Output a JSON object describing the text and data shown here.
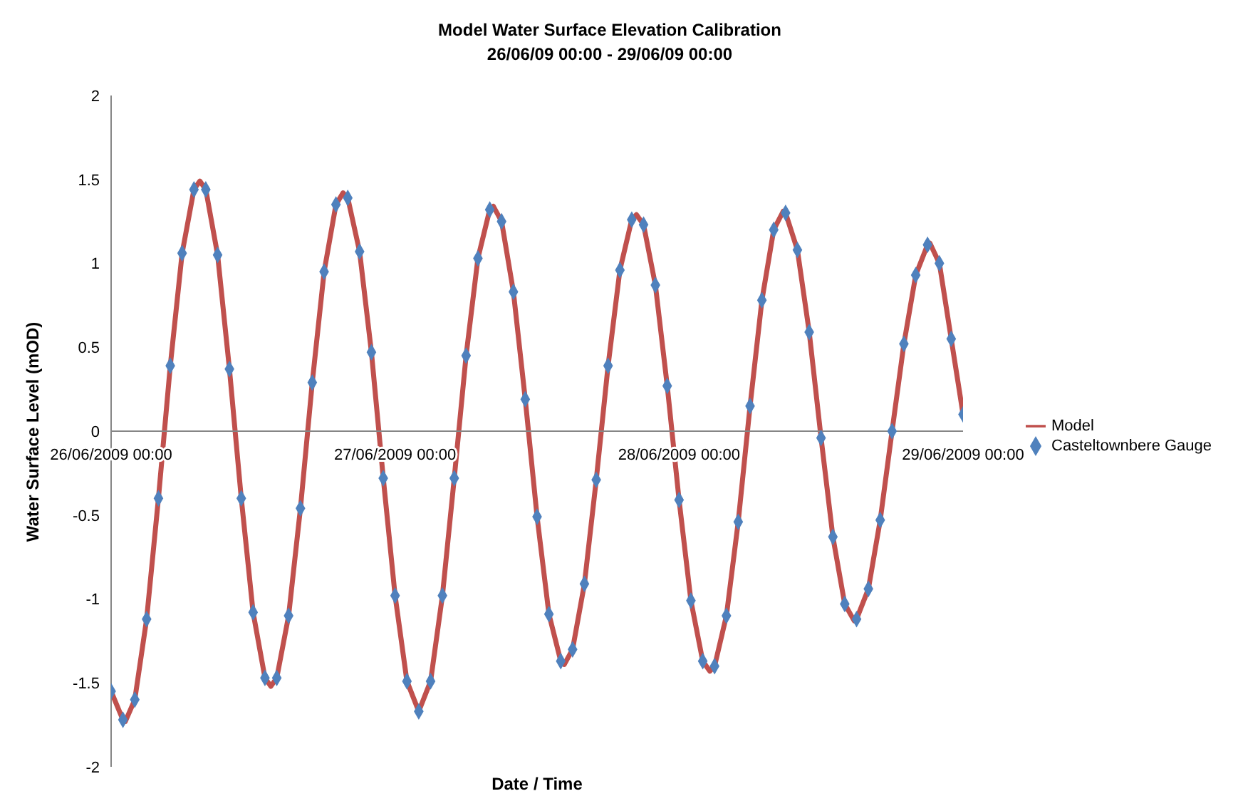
{
  "chart_data": {
    "type": "line",
    "title": "Model Water Surface Elevation Calibration",
    "subtitle": "26/06/09 00:00 - 29/06/09 00:00",
    "xlabel": "Date / Time",
    "ylabel": "Water Surface Level (mOD)",
    "x": [
      "2009-06-26T00:00",
      "2009-06-26T01:00",
      "2009-06-26T01:12",
      "2009-06-26T02:00",
      "2009-06-26T03:00",
      "2009-06-26T04:00",
      "2009-06-26T05:00",
      "2009-06-26T06:00",
      "2009-06-26T07:00",
      "2009-06-26T07:30",
      "2009-06-26T08:00",
      "2009-06-26T09:00",
      "2009-06-26T10:00",
      "2009-06-26T11:00",
      "2009-06-26T12:00",
      "2009-06-26T13:00",
      "2009-06-26T13:30",
      "2009-06-26T14:00",
      "2009-06-26T15:00",
      "2009-06-26T16:00",
      "2009-06-26T17:00",
      "2009-06-26T18:00",
      "2009-06-26T19:00",
      "2009-06-26T19:36",
      "2009-06-26T20:00",
      "2009-06-26T21:00",
      "2009-06-26T22:00",
      "2009-06-26T23:00",
      "2009-06-27T00:00",
      "2009-06-27T01:00",
      "2009-06-27T02:00",
      "2009-06-27T03:00",
      "2009-06-27T04:00",
      "2009-06-27T05:00",
      "2009-06-27T06:00",
      "2009-06-27T07:00",
      "2009-06-27T08:00",
      "2009-06-27T08:18",
      "2009-06-27T09:00",
      "2009-06-27T10:00",
      "2009-06-27T11:00",
      "2009-06-27T12:00",
      "2009-06-27T13:00",
      "2009-06-27T14:00",
      "2009-06-27T14:18",
      "2009-06-27T15:00",
      "2009-06-27T16:00",
      "2009-06-27T17:00",
      "2009-06-27T18:00",
      "2009-06-27T19:00",
      "2009-06-27T20:00",
      "2009-06-27T20:24",
      "2009-06-27T21:00",
      "2009-06-27T22:00",
      "2009-06-27T23:00",
      "2009-06-28T00:00",
      "2009-06-28T01:00",
      "2009-06-28T02:00",
      "2009-06-28T02:36",
      "2009-06-28T03:00",
      "2009-06-28T04:00",
      "2009-06-28T05:00",
      "2009-06-28T06:00",
      "2009-06-28T07:00",
      "2009-06-28T08:00",
      "2009-06-28T08:48",
      "2009-06-28T09:00",
      "2009-06-28T10:00",
      "2009-06-28T11:00",
      "2009-06-28T12:00",
      "2009-06-28T13:00",
      "2009-06-28T14:00",
      "2009-06-28T14:48",
      "2009-06-28T15:00",
      "2009-06-28T16:00",
      "2009-06-28T17:00",
      "2009-06-28T18:00",
      "2009-06-28T19:00",
      "2009-06-28T20:00",
      "2009-06-28T21:00",
      "2009-06-28T21:12",
      "2009-06-28T22:00",
      "2009-06-28T23:00",
      "2009-06-29T00:00"
    ],
    "series": [
      {
        "name": "Model",
        "type": "line",
        "color": "#c0504d",
        "marker": "none",
        "values": [
          -1.55,
          -1.72,
          -1.73,
          -1.6,
          -1.12,
          -0.4,
          0.39,
          1.06,
          1.44,
          1.49,
          1.44,
          1.05,
          0.37,
          -0.4,
          -1.08,
          -1.47,
          -1.52,
          -1.47,
          -1.1,
          -0.46,
          0.29,
          0.95,
          1.35,
          1.42,
          1.39,
          1.07,
          0.47,
          -0.28,
          -0.98,
          -1.49,
          -1.67,
          -1.49,
          -0.98,
          -0.28,
          0.45,
          1.03,
          1.32,
          1.34,
          1.25,
          0.83,
          0.19,
          -0.51,
          -1.09,
          -1.37,
          -1.39,
          -1.3,
          -0.91,
          -0.29,
          0.39,
          0.96,
          1.26,
          1.29,
          1.23,
          0.87,
          0.27,
          -0.41,
          -1.01,
          -1.37,
          -1.43,
          -1.4,
          -1.1,
          -0.54,
          0.15,
          0.78,
          1.2,
          1.31,
          1.3,
          1.08,
          0.59,
          -0.04,
          -0.63,
          -1.03,
          -1.13,
          -1.12,
          -0.94,
          -0.53,
          0.0,
          0.52,
          0.93,
          1.11,
          1.12,
          1.0,
          0.55,
          0.1
        ]
      },
      {
        "name": "Casteltownbere Gauge",
        "type": "scatter",
        "color": "#4f81bd",
        "marker": "diamond",
        "x": [
          "2009-06-26T00:00",
          "2009-06-26T01:00",
          "2009-06-26T02:00",
          "2009-06-26T03:00",
          "2009-06-26T04:00",
          "2009-06-26T05:00",
          "2009-06-26T06:00",
          "2009-06-26T07:00",
          "2009-06-26T08:00",
          "2009-06-26T09:00",
          "2009-06-26T10:00",
          "2009-06-26T11:00",
          "2009-06-26T12:00",
          "2009-06-26T13:00",
          "2009-06-26T14:00",
          "2009-06-26T15:00",
          "2009-06-26T16:00",
          "2009-06-26T17:00",
          "2009-06-26T18:00",
          "2009-06-26T19:00",
          "2009-06-26T20:00",
          "2009-06-26T21:00",
          "2009-06-26T22:00",
          "2009-06-26T23:00",
          "2009-06-27T00:00",
          "2009-06-27T01:00",
          "2009-06-27T02:00",
          "2009-06-27T03:00",
          "2009-06-27T04:00",
          "2009-06-27T05:00",
          "2009-06-27T06:00",
          "2009-06-27T07:00",
          "2009-06-27T08:00",
          "2009-06-27T09:00",
          "2009-06-27T10:00",
          "2009-06-27T11:00",
          "2009-06-27T12:00",
          "2009-06-27T13:00",
          "2009-06-27T14:00",
          "2009-06-27T15:00",
          "2009-06-27T16:00",
          "2009-06-27T17:00",
          "2009-06-27T18:00",
          "2009-06-27T19:00",
          "2009-06-27T20:00",
          "2009-06-27T21:00",
          "2009-06-27T22:00",
          "2009-06-27T23:00",
          "2009-06-28T00:00",
          "2009-06-28T01:00",
          "2009-06-28T02:00",
          "2009-06-28T03:00",
          "2009-06-28T04:00",
          "2009-06-28T05:00",
          "2009-06-28T06:00",
          "2009-06-28T07:00",
          "2009-06-28T08:00",
          "2009-06-28T09:00",
          "2009-06-28T10:00",
          "2009-06-28T11:00",
          "2009-06-28T12:00",
          "2009-06-28T13:00",
          "2009-06-28T14:00",
          "2009-06-28T15:00",
          "2009-06-28T16:00",
          "2009-06-28T17:00",
          "2009-06-28T18:00",
          "2009-06-28T19:00",
          "2009-06-28T20:00",
          "2009-06-28T21:00",
          "2009-06-28T22:00",
          "2009-06-28T23:00",
          "2009-06-29T00:00"
        ],
        "values": [
          -1.55,
          -1.72,
          -1.6,
          -1.12,
          -0.4,
          0.39,
          1.06,
          1.44,
          1.44,
          1.05,
          0.37,
          -0.4,
          -1.08,
          -1.47,
          -1.47,
          -1.1,
          -0.46,
          0.29,
          0.95,
          1.35,
          1.39,
          1.07,
          0.47,
          -0.28,
          -0.98,
          -1.49,
          -1.67,
          -1.49,
          -0.98,
          -0.28,
          0.45,
          1.03,
          1.32,
          1.25,
          0.83,
          0.19,
          -0.51,
          -1.09,
          -1.37,
          -1.3,
          -0.91,
          -0.29,
          0.39,
          0.96,
          1.26,
          1.23,
          0.87,
          0.27,
          -0.41,
          -1.01,
          -1.37,
          -1.4,
          -1.1,
          -0.54,
          0.15,
          0.78,
          1.2,
          1.3,
          1.08,
          0.59,
          -0.04,
          -0.63,
          -1.03,
          -1.12,
          -0.94,
          -0.53,
          0.0,
          0.52,
          0.93,
          1.11,
          1.0,
          0.55,
          0.1
        ]
      }
    ],
    "xlim": [
      "2009-06-26T00:00",
      "2009-06-29T00:00"
    ],
    "xticks": [
      {
        "value": "2009-06-26T00:00",
        "label": "26/06/2009 00:00"
      },
      {
        "value": "2009-06-27T00:00",
        "label": "27/06/2009 00:00"
      },
      {
        "value": "2009-06-28T00:00",
        "label": "28/06/2009 00:00"
      },
      {
        "value": "2009-06-29T00:00",
        "label": "29/06/2009 00:00"
      }
    ],
    "ylim": [
      -2,
      2
    ],
    "yticks": [
      -2,
      -1.5,
      -1,
      -0.5,
      0,
      0.5,
      1,
      1.5,
      2
    ],
    "legend": "right"
  }
}
